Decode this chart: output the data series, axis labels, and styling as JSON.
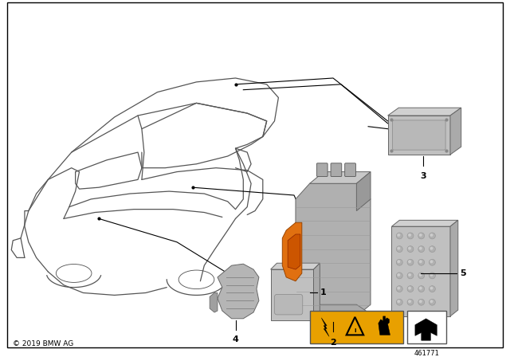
{
  "background_color": "#ffffff",
  "border_color": "#000000",
  "copyright_text": "© 2019 BMW AG",
  "part_number": "461771",
  "warning_yellow": "#E8A000",
  "car_color": "#555555",
  "lw_car": 0.9,
  "part_gray_light": "#c8c8c8",
  "part_gray_mid": "#aaaaaa",
  "part_gray_dark": "#888888",
  "part_orange": "#E07010",
  "label_fontsize": 8,
  "copyright_fontsize": 6.5
}
